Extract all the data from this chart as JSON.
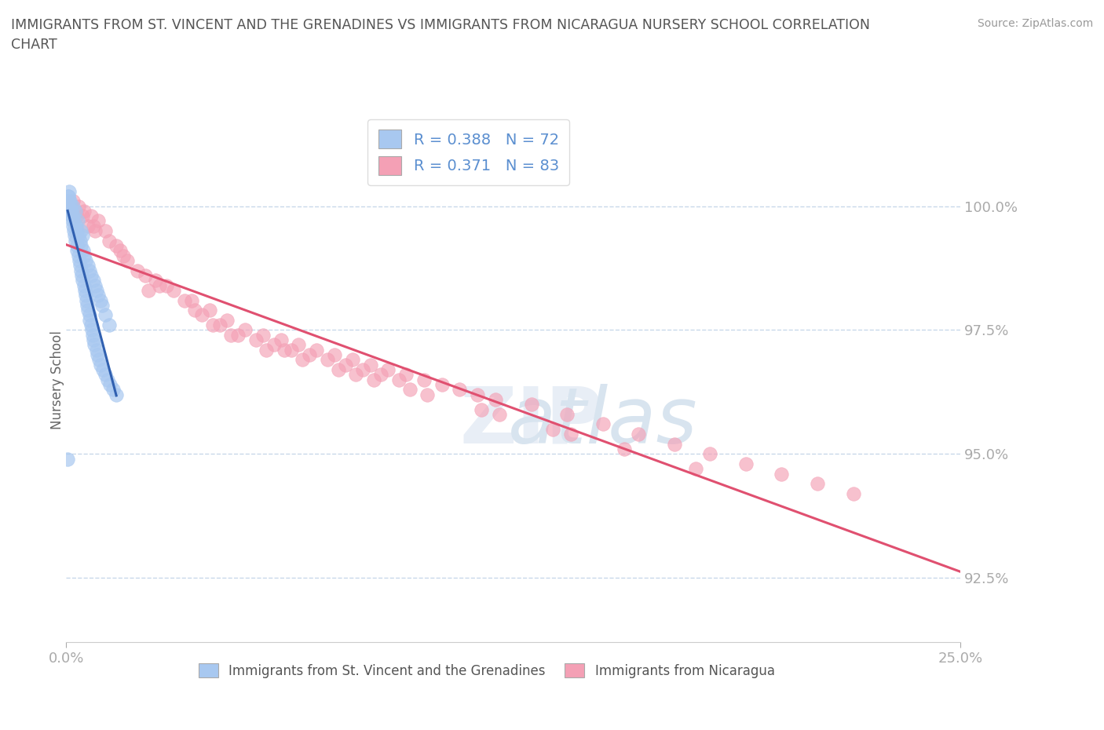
{
  "title": "IMMIGRANTS FROM ST. VINCENT AND THE GRENADINES VS IMMIGRANTS FROM NICARAGUA NURSERY SCHOOL CORRELATION\nCHART",
  "source": "Source: ZipAtlas.com",
  "ylabel": "Nursery School",
  "xlim": [
    0.0,
    25.0
  ],
  "ylim": [
    91.2,
    101.8
  ],
  "yticks": [
    92.5,
    95.0,
    97.5,
    100.0
  ],
  "xticks": [
    0.0,
    25.0
  ],
  "blue_color": "#A8C8F0",
  "pink_color": "#F4A0B5",
  "trend_blue_color": "#3060B0",
  "trend_pink_color": "#E05070",
  "grid_color": "#C8D8EA",
  "legend_R1": "R = 0.388",
  "legend_N1": "N = 72",
  "legend_R2": "R = 0.371",
  "legend_N2": "N = 83",
  "label1": "Immigrants from St. Vincent and the Grenadines",
  "label2": "Immigrants from Nicaragua",
  "blue_x": [
    0.05,
    0.08,
    0.1,
    0.12,
    0.15,
    0.18,
    0.2,
    0.22,
    0.25,
    0.28,
    0.3,
    0.32,
    0.35,
    0.38,
    0.4,
    0.42,
    0.45,
    0.48,
    0.5,
    0.55,
    0.6,
    0.65,
    0.7,
    0.75,
    0.8,
    0.85,
    0.9,
    0.95,
    1.0,
    1.1,
    1.2,
    0.06,
    0.09,
    0.11,
    0.14,
    0.16,
    0.19,
    0.21,
    0.24,
    0.26,
    0.29,
    0.31,
    0.34,
    0.36,
    0.39,
    0.41,
    0.44,
    0.46,
    0.49,
    0.51,
    0.54,
    0.56,
    0.59,
    0.61,
    0.64,
    0.66,
    0.69,
    0.71,
    0.74,
    0.76,
    0.79,
    0.84,
    0.88,
    0.92,
    0.96,
    1.02,
    1.08,
    1.15,
    1.22,
    1.3,
    1.4,
    0.04
  ],
  "blue_y": [
    100.2,
    100.3,
    100.1,
    100.0,
    99.9,
    100.0,
    99.8,
    99.7,
    99.9,
    99.6,
    99.5,
    99.7,
    99.4,
    99.3,
    99.5,
    99.2,
    99.4,
    99.1,
    99.0,
    98.9,
    98.8,
    98.7,
    98.6,
    98.5,
    98.4,
    98.3,
    98.2,
    98.1,
    98.0,
    97.8,
    97.6,
    100.2,
    100.1,
    99.9,
    99.8,
    99.7,
    99.6,
    99.5,
    99.4,
    99.3,
    99.2,
    99.1,
    99.0,
    98.9,
    98.8,
    98.7,
    98.6,
    98.5,
    98.4,
    98.3,
    98.2,
    98.1,
    98.0,
    97.9,
    97.8,
    97.7,
    97.6,
    97.5,
    97.4,
    97.3,
    97.2,
    97.1,
    97.0,
    96.9,
    96.8,
    96.7,
    96.6,
    96.5,
    96.4,
    96.3,
    96.2,
    94.9
  ],
  "pink_x": [
    0.1,
    0.2,
    0.35,
    0.5,
    0.7,
    0.9,
    1.1,
    1.4,
    1.7,
    2.0,
    2.5,
    3.0,
    3.5,
    4.0,
    4.5,
    5.0,
    5.5,
    6.0,
    6.5,
    7.0,
    7.5,
    8.0,
    8.5,
    9.0,
    9.5,
    10.0,
    10.5,
    11.0,
    11.5,
    12.0,
    13.0,
    14.0,
    15.0,
    16.0,
    17.0,
    18.0,
    19.0,
    20.0,
    21.0,
    22.0,
    0.3,
    0.6,
    0.8,
    1.2,
    1.5,
    2.2,
    2.8,
    3.3,
    3.8,
    4.3,
    4.8,
    5.3,
    5.8,
    6.3,
    6.8,
    7.3,
    7.8,
    8.3,
    8.8,
    9.3,
    0.15,
    0.45,
    0.75,
    1.6,
    2.6,
    3.6,
    4.6,
    5.6,
    6.6,
    7.6,
    8.6,
    9.6,
    11.6,
    13.6,
    15.6,
    17.6,
    2.3,
    4.1,
    6.1,
    8.1,
    10.1,
    12.1,
    14.1
  ],
  "pink_y": [
    100.0,
    100.1,
    100.0,
    99.9,
    99.8,
    99.7,
    99.5,
    99.2,
    98.9,
    98.7,
    98.5,
    98.3,
    98.1,
    97.9,
    97.7,
    97.5,
    97.4,
    97.3,
    97.2,
    97.1,
    97.0,
    96.9,
    96.8,
    96.7,
    96.6,
    96.5,
    96.4,
    96.3,
    96.2,
    96.1,
    96.0,
    95.8,
    95.6,
    95.4,
    95.2,
    95.0,
    94.8,
    94.6,
    94.4,
    94.2,
    99.8,
    99.6,
    99.5,
    99.3,
    99.1,
    98.6,
    98.4,
    98.1,
    97.8,
    97.6,
    97.4,
    97.3,
    97.2,
    97.1,
    97.0,
    96.9,
    96.8,
    96.7,
    96.6,
    96.5,
    100.0,
    99.8,
    99.6,
    99.0,
    98.4,
    97.9,
    97.4,
    97.1,
    96.9,
    96.7,
    96.5,
    96.3,
    95.9,
    95.5,
    95.1,
    94.7,
    98.3,
    97.6,
    97.1,
    96.6,
    96.2,
    95.8,
    95.4
  ],
  "bg_color": "#FFFFFF",
  "title_color": "#555555",
  "tick_color": "#5B8FD0"
}
